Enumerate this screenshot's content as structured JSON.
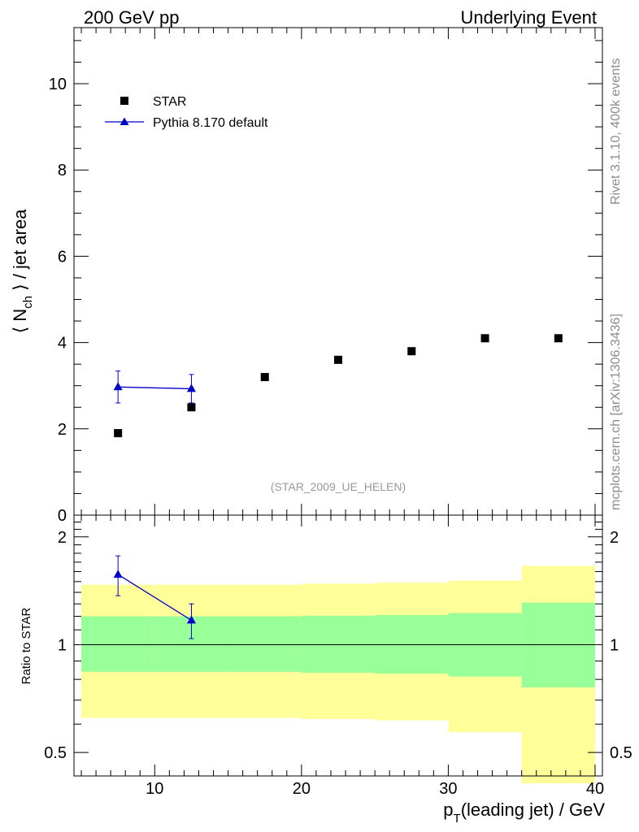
{
  "header": {
    "left": "200 GeV pp",
    "right": "Underlying Event"
  },
  "side": {
    "rivet": "Rivet 3.1.10,  400k events",
    "mcplots": "mcplots.cern.ch [arXiv:1306.3436]"
  },
  "analysis_tag": "(STAR_2009_UE_HELEN)",
  "colors": {
    "data": "#000000",
    "mc": "#0000cc",
    "band_inner": "#99ff99",
    "band_outer": "#ffff99"
  },
  "chart_data": [
    {
      "type": "scatter",
      "title": "",
      "ylabel": "⟨ N_ch ⟩ / jet area",
      "ylabel_main": "⟨ N",
      "ylabel_sub": "ch",
      "ylabel_rest": " ⟩ / jet area",
      "xlim": [
        4.5,
        40.5
      ],
      "ylim": [
        0,
        11.3
      ],
      "yticks": [
        0,
        2,
        4,
        6,
        8,
        10
      ],
      "ytick_labels": [
        "0",
        "2",
        "4",
        "6",
        "8",
        "10"
      ],
      "legend": {
        "placement": "top-left",
        "entries": [
          "STAR",
          "Pythia 8.170 default"
        ]
      },
      "series": [
        {
          "name": "STAR",
          "marker": "square",
          "x": [
            7.5,
            12.5,
            17.5,
            22.5,
            27.5,
            32.5,
            37.5
          ],
          "y": [
            1.9,
            2.5,
            3.2,
            3.6,
            3.8,
            4.1,
            4.1
          ]
        },
        {
          "name": "Pythia 8.170 default",
          "marker": "triangle",
          "x": [
            7.5,
            12.5
          ],
          "y": [
            2.97,
            2.93
          ],
          "yerr": [
            0.37,
            0.33
          ]
        }
      ]
    },
    {
      "type": "line",
      "ylabel": "Ratio to STAR",
      "xlabel": "p_T(leading jet) / GeV",
      "xlabel_main": "p",
      "xlabel_sub": "T",
      "xlabel_rest": "(leading jet) / GeV",
      "xlim": [
        4.5,
        40.5
      ],
      "xticks": [
        10,
        20,
        30,
        40
      ],
      "xtick_labels": [
        "10",
        "20",
        "30",
        "40"
      ],
      "ylim": [
        0.43,
        2.3
      ],
      "yscale": "log",
      "yticks": [
        0.5,
        1,
        2
      ],
      "ytick_labels": [
        "0.5",
        "1",
        "2"
      ],
      "reference_line": 1,
      "bands": {
        "x_edges": [
          5,
          10,
          15,
          20,
          25,
          30,
          35,
          40
        ],
        "inner_low": [
          0.84,
          0.84,
          0.84,
          0.835,
          0.83,
          0.815,
          0.76
        ],
        "inner_high": [
          1.2,
          1.2,
          1.2,
          1.205,
          1.21,
          1.225,
          1.31
        ],
        "outer_low": [
          0.625,
          0.625,
          0.625,
          0.62,
          0.615,
          0.57,
          0.41
        ],
        "outer_high": [
          1.47,
          1.47,
          1.47,
          1.48,
          1.49,
          1.51,
          1.66
        ]
      },
      "series": [
        {
          "name": "Pythia 8.170 default",
          "x": [
            7.5,
            12.5
          ],
          "y": [
            1.57,
            1.17
          ],
          "yerr": [
            0.2,
            0.13
          ]
        }
      ]
    }
  ]
}
